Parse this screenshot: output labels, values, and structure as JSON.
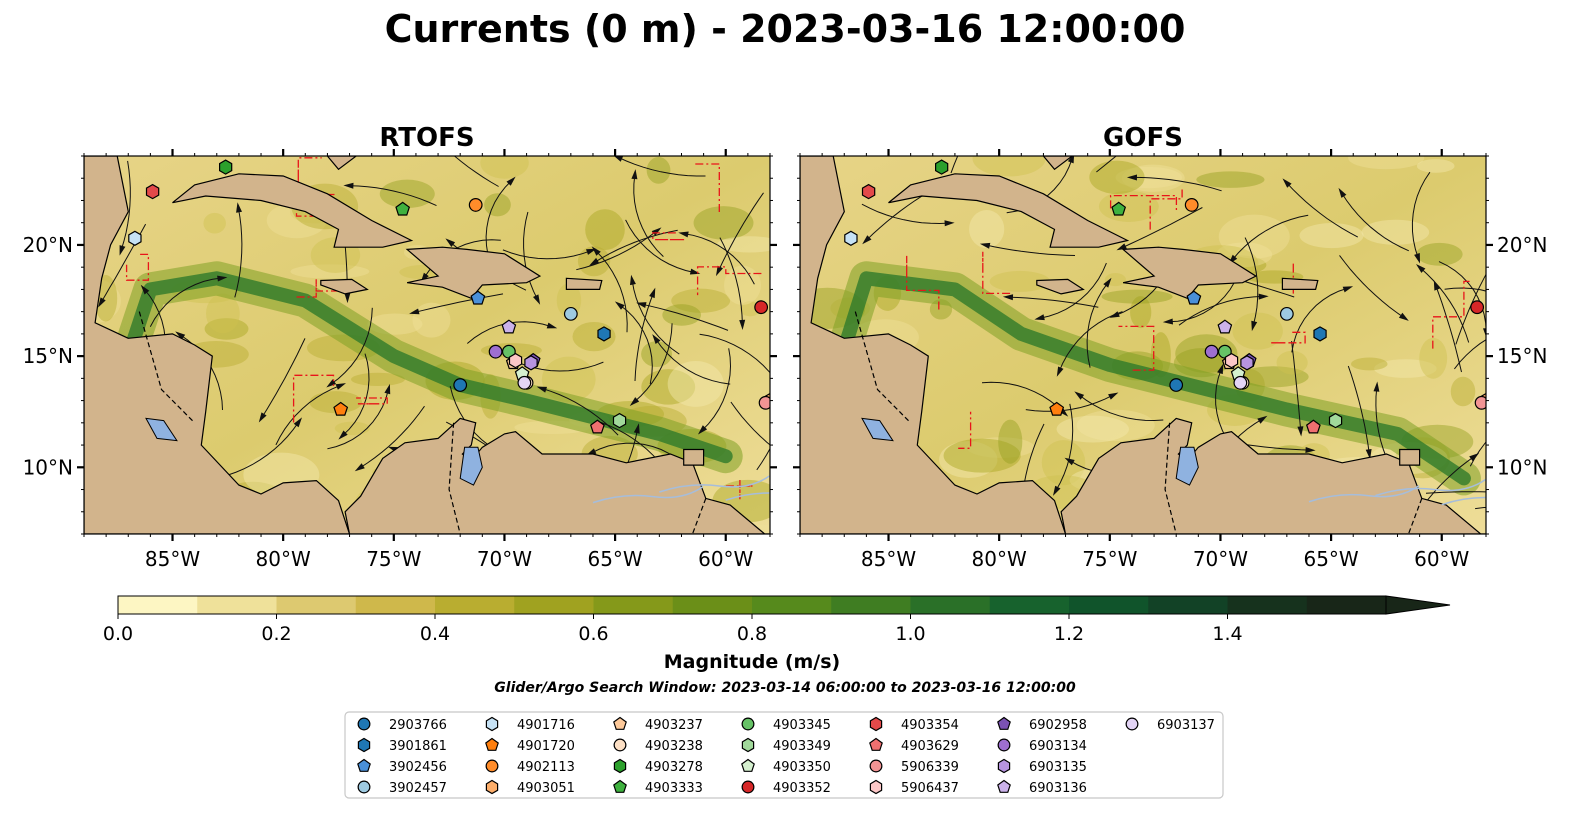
{
  "figure": {
    "title": "Currents (0 m) - 2023-03-16 12:00:00",
    "search_window": "Glider/Argo Search Window: 2023-03-14 06:00:00 to 2023-03-16 12:00:00"
  },
  "chart_data": [
    {
      "type": "heatmap",
      "title": "RTOFS",
      "xlim": [
        -89,
        -58
      ],
      "ylim": [
        7,
        24
      ],
      "xticks": [
        "85°W",
        "80°W",
        "75°W",
        "70°W",
        "65°W",
        "60°W"
      ],
      "yticks": [
        "10°N",
        "15°N",
        "20°N"
      ],
      "ytick_side": "left"
    },
    {
      "type": "heatmap",
      "title": "GOFS",
      "xlim": [
        -89,
        -58
      ],
      "ylim": [
        7,
        24
      ],
      "xticks": [
        "85°W",
        "80°W",
        "75°W",
        "70°W",
        "65°W",
        "60°W"
      ],
      "yticks": [
        "10°N",
        "15°N",
        "20°N"
      ],
      "ytick_side": "right"
    }
  ],
  "colorbar": {
    "label": "Magnitude (m/s)",
    "ticks": [
      "0.0",
      "0.2",
      "0.4",
      "0.6",
      "0.8",
      "1.0",
      "1.2",
      "1.4"
    ],
    "tick_values": [
      0,
      0.2,
      0.4,
      0.6,
      0.8,
      1.0,
      1.2,
      1.4
    ],
    "range": [
      0,
      1.6
    ],
    "colors": [
      "#fdf6c3",
      "#efe19a",
      "#ddc970",
      "#cfb84b",
      "#b9ad30",
      "#a0a220",
      "#85991a",
      "#6b8f18",
      "#568a1c",
      "#3f7d22",
      "#2a7028",
      "#17622d",
      "#10542b",
      "#124226",
      "#16321d",
      "#182618"
    ]
  },
  "legend": {
    "entries": [
      {
        "label": "2903766",
        "marker": "circle",
        "color": "#1f77b4"
      },
      {
        "label": "3901861",
        "marker": "hexagon",
        "color": "#1f77b4"
      },
      {
        "label": "3902456",
        "marker": "pentagon",
        "color": "#4a90d9"
      },
      {
        "label": "3902457",
        "marker": "circle",
        "color": "#9ecae1"
      },
      {
        "label": "4901716",
        "marker": "hexagon",
        "color": "#c6e2f5"
      },
      {
        "label": "4901720",
        "marker": "pentagon",
        "color": "#ff7f0e"
      },
      {
        "label": "4902113",
        "marker": "circle",
        "color": "#ff8c2a"
      },
      {
        "label": "4903051",
        "marker": "hexagon",
        "color": "#fdae6b"
      },
      {
        "label": "4903237",
        "marker": "pentagon",
        "color": "#fdc99a"
      },
      {
        "label": "4903238",
        "marker": "circle",
        "color": "#fde0c5"
      },
      {
        "label": "4903278",
        "marker": "hexagon",
        "color": "#2ca02c"
      },
      {
        "label": "4903333",
        "marker": "pentagon",
        "color": "#3fb13f"
      },
      {
        "label": "4903345",
        "marker": "circle",
        "color": "#66c266"
      },
      {
        "label": "4903349",
        "marker": "hexagon",
        "color": "#a1d99b"
      },
      {
        "label": "4903350",
        "marker": "pentagon",
        "color": "#d5f0cf"
      },
      {
        "label": "4903352",
        "marker": "circle",
        "color": "#d62728"
      },
      {
        "label": "4903354",
        "marker": "hexagon",
        "color": "#e34a4a"
      },
      {
        "label": "4903629",
        "marker": "pentagon",
        "color": "#f07070"
      },
      {
        "label": "5906339",
        "marker": "circle",
        "color": "#f29494"
      },
      {
        "label": "5906437",
        "marker": "hexagon",
        "color": "#fcc7c7"
      },
      {
        "label": "6902958",
        "marker": "pentagon",
        "color": "#7b52b3"
      },
      {
        "label": "6903134",
        "marker": "circle",
        "color": "#9e6fd0"
      },
      {
        "label": "6903135",
        "marker": "hexagon",
        "color": "#b794e0"
      },
      {
        "label": "6903136",
        "marker": "pentagon",
        "color": "#cbb2ea"
      },
      {
        "label": "6903137",
        "marker": "circle",
        "color": "#e3d4f5"
      }
    ]
  },
  "floats": [
    {
      "id": "2903766",
      "lon": -72.0,
      "lat": 13.7
    },
    {
      "id": "3901861",
      "lon": -65.5,
      "lat": 16.0
    },
    {
      "id": "3902456",
      "lon": -71.2,
      "lat": 17.6
    },
    {
      "id": "3902457",
      "lon": -67.0,
      "lat": 16.9
    },
    {
      "id": "4901716",
      "lon": -86.7,
      "lat": 20.3
    },
    {
      "id": "4901720",
      "lon": -77.4,
      "lat": 12.6
    },
    {
      "id": "4902113",
      "lon": -71.3,
      "lat": 21.8
    },
    {
      "id": "4903051",
      "lon": -58.0,
      "lat": 13.0
    },
    {
      "id": "4903237",
      "lon": -69.6,
      "lat": 14.7
    },
    {
      "id": "4903238",
      "lon": -69.0,
      "lat": 13.8
    },
    {
      "id": "4903278",
      "lon": -82.6,
      "lat": 23.5
    },
    {
      "id": "4903333",
      "lon": -74.6,
      "lat": 21.6
    },
    {
      "id": "4903345",
      "lon": -69.8,
      "lat": 15.2
    },
    {
      "id": "4903349",
      "lon": -64.8,
      "lat": 12.1
    },
    {
      "id": "4903350",
      "lon": -69.2,
      "lat": 14.2
    },
    {
      "id": "4903352",
      "lon": -58.4,
      "lat": 17.2
    },
    {
      "id": "4903354",
      "lon": -85.9,
      "lat": 22.4
    },
    {
      "id": "4903629",
      "lon": -65.8,
      "lat": 11.8
    },
    {
      "id": "5906339",
      "lon": -58.2,
      "lat": 12.9
    },
    {
      "id": "5906437",
      "lon": -69.5,
      "lat": 14.8
    },
    {
      "id": "6902958",
      "lon": -68.7,
      "lat": 14.8
    },
    {
      "id": "6903134",
      "lon": -70.4,
      "lat": 15.2
    },
    {
      "id": "6903135",
      "lon": -68.8,
      "lat": 14.7
    },
    {
      "id": "6903136",
      "lon": -69.8,
      "lat": 16.3
    },
    {
      "id": "6903137",
      "lon": -69.1,
      "lat": 13.8
    }
  ]
}
